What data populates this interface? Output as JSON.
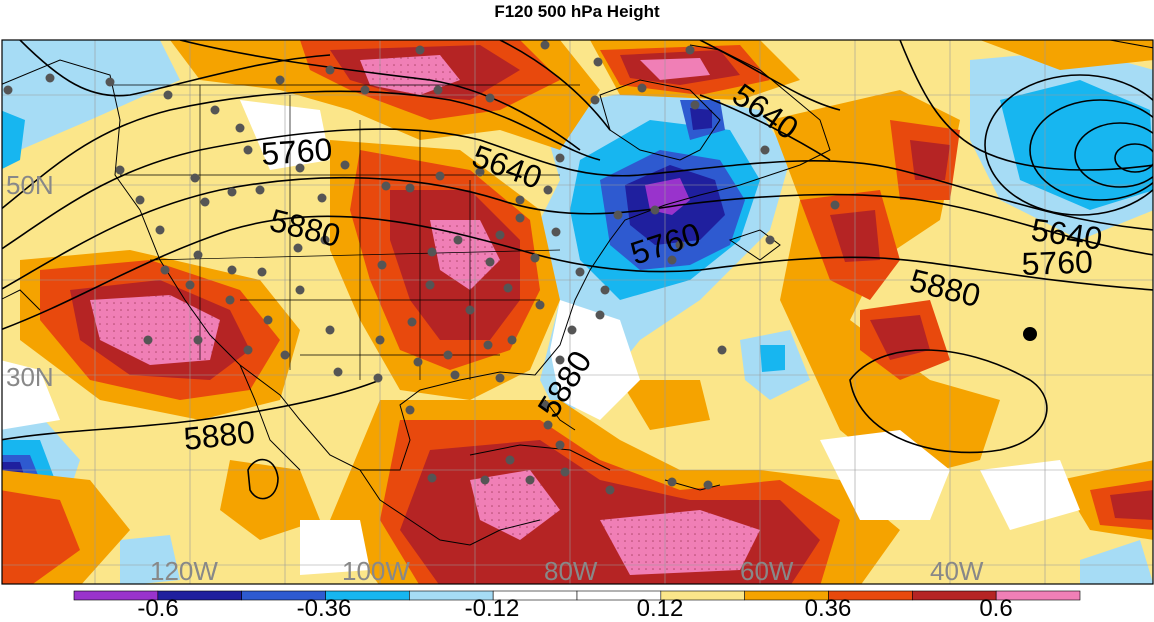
{
  "title": "F120 500 hPa Height",
  "latitude_labels": [
    "50N",
    "30N"
  ],
  "longitude_labels": [
    "120W",
    "100W",
    "80W",
    "60W",
    "40W"
  ],
  "contour_labels": [
    "5760",
    "5640",
    "5880",
    "5880",
    "5880",
    "5640",
    "5760",
    "5880",
    "5640",
    "5760",
    "5760"
  ],
  "colorbar": {
    "tick_labels": [
      "-0.6",
      "-0.36",
      "-0.12",
      "0.12",
      "0.36",
      "0.6"
    ],
    "colors": [
      "#9933cc",
      "#1f1f9e",
      "#2e5ad0",
      "#17b6f0",
      "#a6dcf5",
      "#ffffff",
      "#ffffff",
      "#fbe68a",
      "#f5a300",
      "#e8490d",
      "#b52424",
      "#f07fb6"
    ]
  },
  "colors": {
    "map_background": "#fbe68a",
    "contour_line": "#000000",
    "station_marker": "#555555",
    "lat_lon_label": "#888888"
  }
}
